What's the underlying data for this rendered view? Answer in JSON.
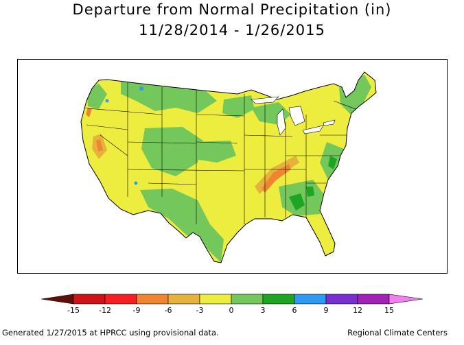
{
  "title": "Departure from Normal Precipitation (in)",
  "subtitle": "11/28/2014 - 1/26/2015",
  "legend": {
    "labels": [
      "-15",
      "-12",
      "-9",
      "-6",
      "-3",
      "0",
      "3",
      "6",
      "9",
      "12",
      "15"
    ],
    "colors": [
      "#a31d12",
      "#cf1317",
      "#f72020",
      "#ef8530",
      "#e7b23b",
      "#eded3f",
      "#74c75b",
      "#1ea524",
      "#2c9bf0",
      "#7b2fd1",
      "#a221b7",
      "#f27ef0"
    ]
  },
  "footer": {
    "left": "Generated 1/27/2015 at HPRCC using provisional data.",
    "right": "Regional Climate Centers"
  }
}
